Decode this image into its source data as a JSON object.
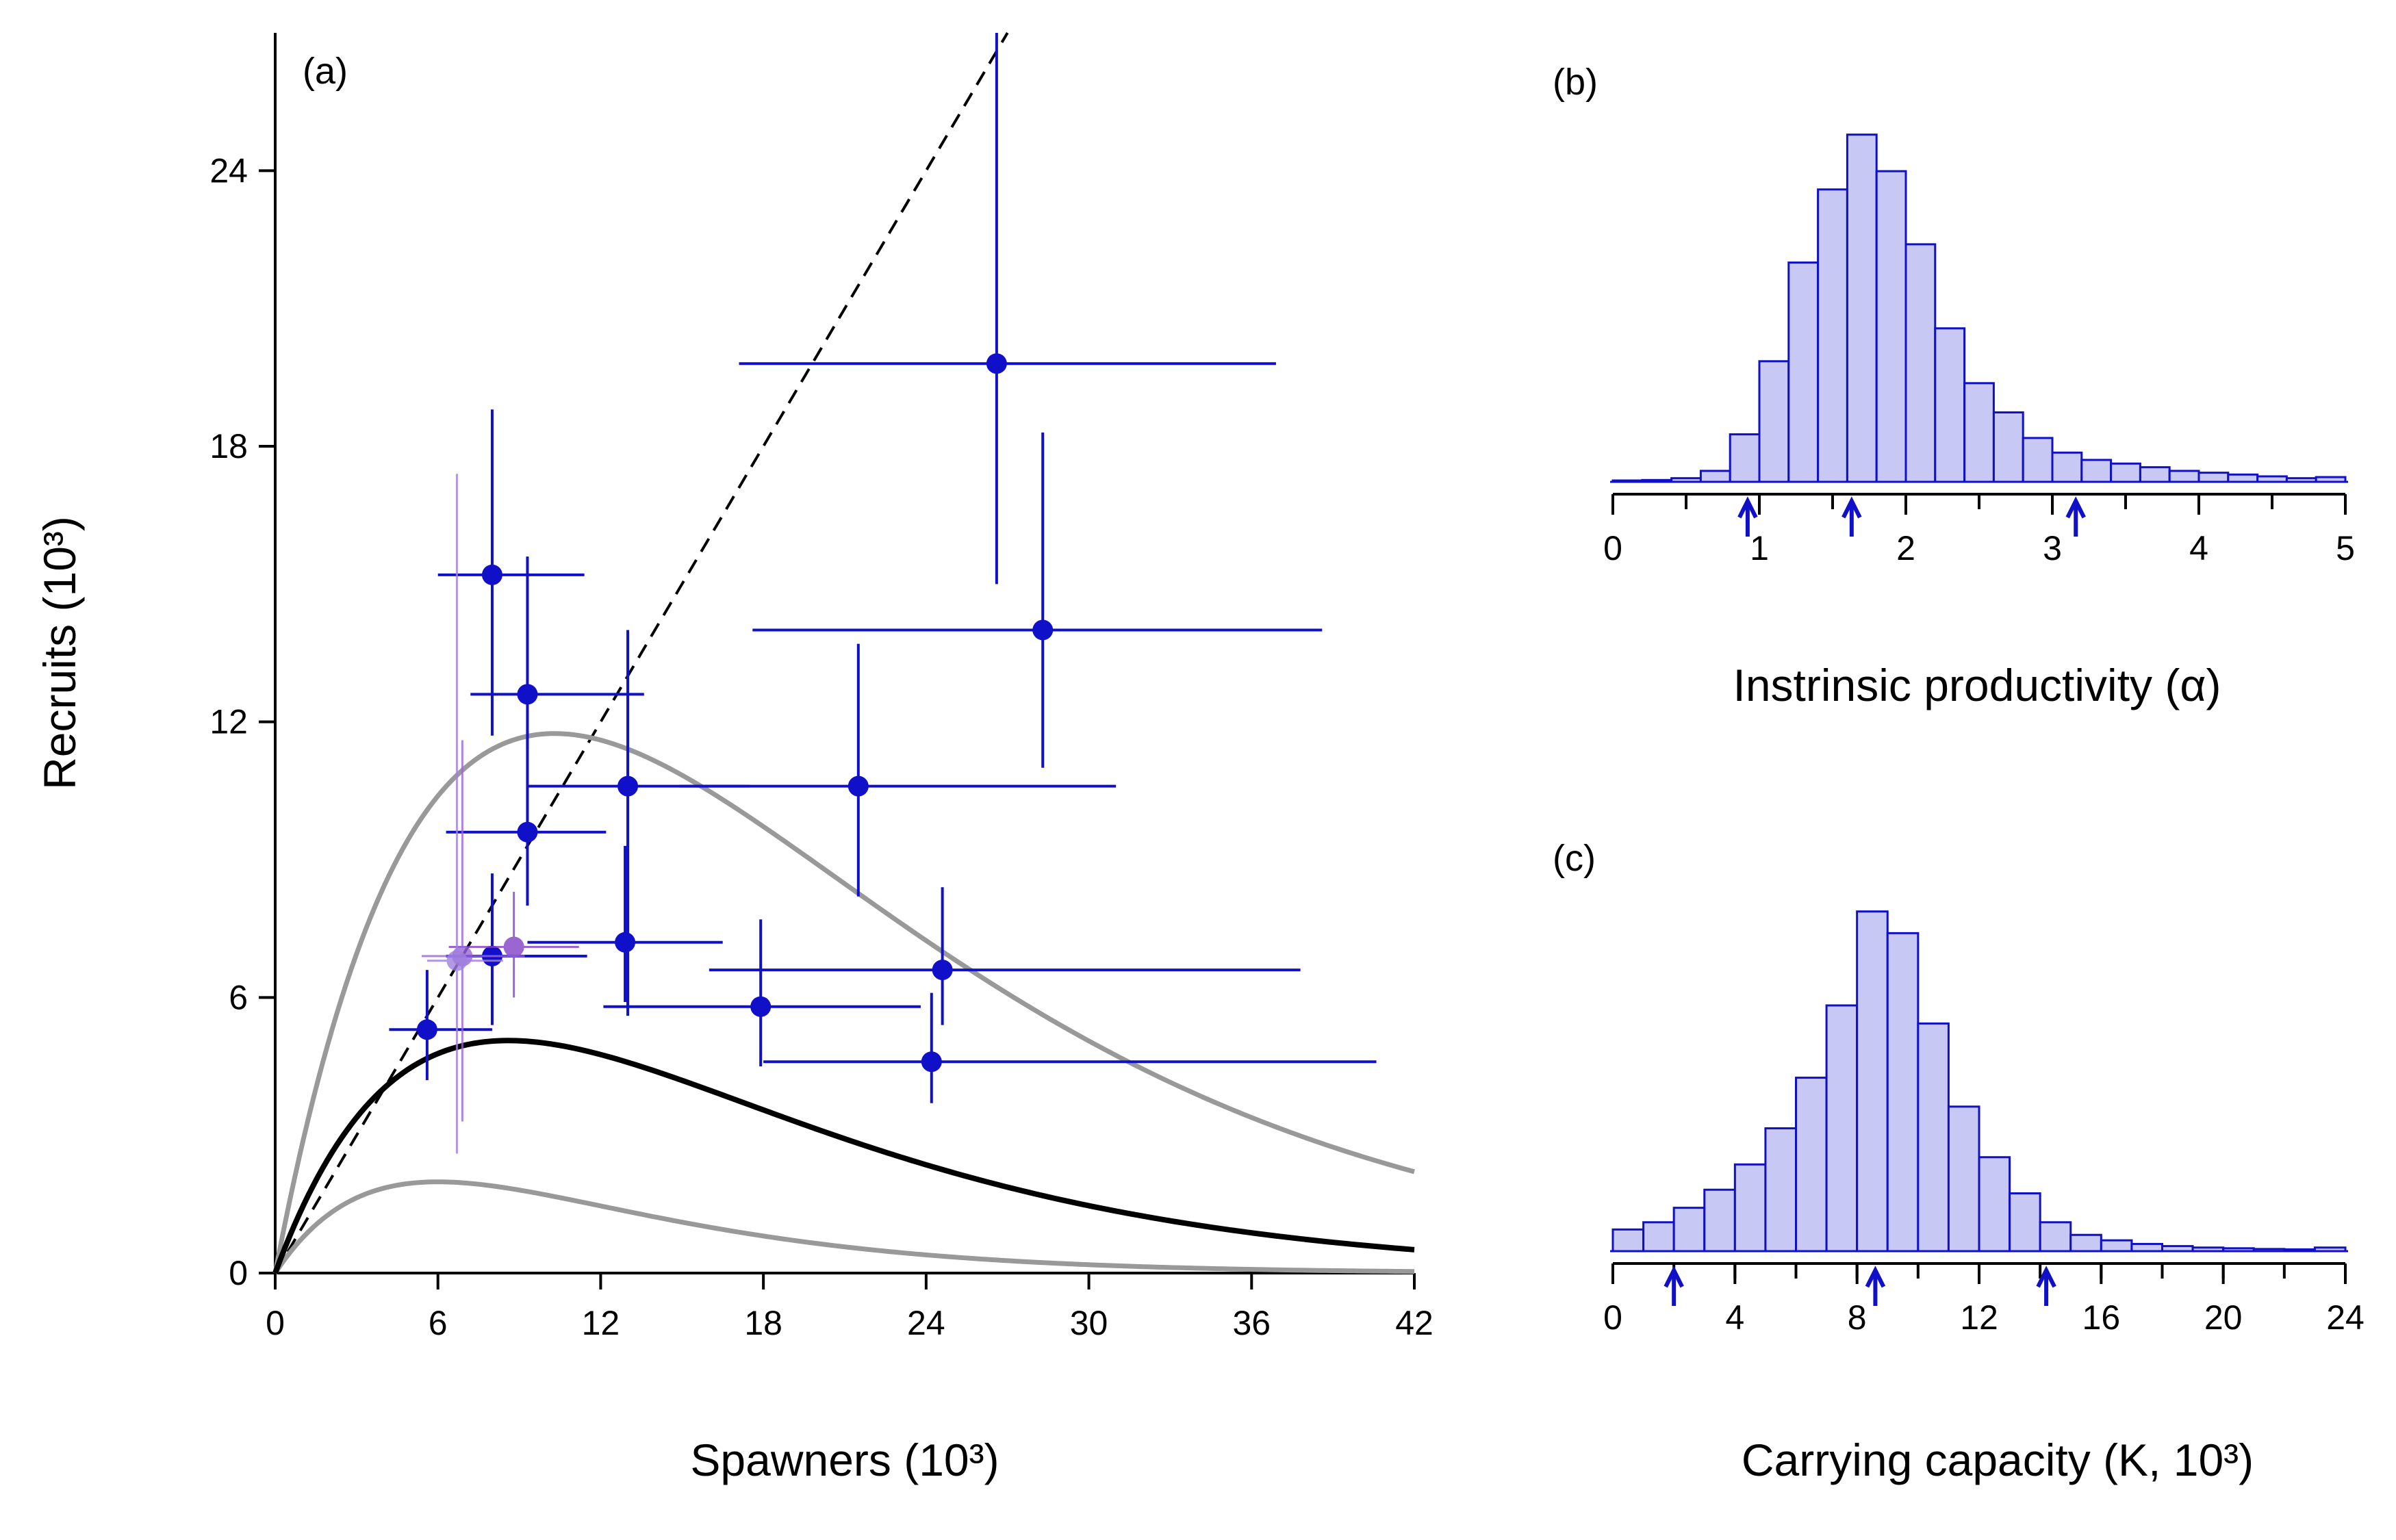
{
  "chart_data": [
    {
      "panel_label": "(a)",
      "type": "scatter",
      "xlabel": "Spawners (10³)",
      "ylabel": "Recruits (10³)",
      "xlim": [
        0,
        42
      ],
      "ylim": [
        0,
        27
      ],
      "x_ticks": [
        "0",
        "6",
        "12",
        "18",
        "24",
        "30",
        "36",
        "42"
      ],
      "y_ticks": [
        "0",
        "6",
        "12",
        "18",
        "24"
      ],
      "replacement_line": {
        "style": "dashed",
        "color": "#000000"
      },
      "curves": [
        {
          "role": "median",
          "color": "#000000",
          "alpha": 1.6,
          "K": 8.6
        },
        {
          "role": "upper",
          "color": "#999999",
          "alpha": 3.1,
          "K": 10.3
        },
        {
          "role": "lower",
          "color": "#999999",
          "alpha": 0.9,
          "K": 6.0
        }
      ],
      "points": [
        {
          "x": 5.6,
          "y": 5.3,
          "xlo": 4.2,
          "xhi": 8.0,
          "ylo": 4.2,
          "yhi": 6.6,
          "color": "#1010c8"
        },
        {
          "x": 8.0,
          "y": 15.2,
          "xlo": 6.0,
          "xhi": 11.4,
          "ylo": 11.7,
          "yhi": 18.8,
          "color": "#1010c8"
        },
        {
          "x": 9.3,
          "y": 12.6,
          "xlo": 7.2,
          "xhi": 13.6,
          "ylo": 11.4,
          "yhi": 15.6,
          "color": "#1010c8"
        },
        {
          "x": 9.3,
          "y": 9.6,
          "xlo": 6.3,
          "xhi": 12.2,
          "ylo": 8.0,
          "yhi": 11.8,
          "color": "#1010c8"
        },
        {
          "x": 8.0,
          "y": 6.9,
          "xlo": 6.3,
          "xhi": 11.5,
          "ylo": 5.4,
          "yhi": 8.7,
          "color": "#1010c8"
        },
        {
          "x": 13.0,
          "y": 10.6,
          "xlo": 9.3,
          "xhi": 17.5,
          "ylo": 5.6,
          "yhi": 14.0,
          "color": "#1010c8"
        },
        {
          "x": 12.9,
          "y": 7.2,
          "xlo": 9.3,
          "xhi": 16.5,
          "ylo": 5.9,
          "yhi": 9.3,
          "color": "#1010c8"
        },
        {
          "x": 17.9,
          "y": 5.8,
          "xlo": 12.1,
          "xhi": 23.8,
          "ylo": 4.5,
          "yhi": 7.7,
          "color": "#1010c8"
        },
        {
          "x": 21.5,
          "y": 10.6,
          "xlo": 14.9,
          "xhi": 31.0,
          "ylo": 8.2,
          "yhi": 13.7,
          "color": "#1010c8"
        },
        {
          "x": 24.2,
          "y": 4.6,
          "xlo": 18.0,
          "xhi": 40.6,
          "ylo": 3.7,
          "yhi": 6.1,
          "color": "#1010c8"
        },
        {
          "x": 24.6,
          "y": 6.6,
          "xlo": 16.0,
          "xhi": 37.8,
          "ylo": 5.4,
          "yhi": 8.4,
          "color": "#1010c8"
        },
        {
          "x": 26.6,
          "y": 19.8,
          "xlo": 17.1,
          "xhi": 36.9,
          "ylo": 15.0,
          "yhi": 27.0,
          "color": "#1010c8"
        },
        {
          "x": 28.3,
          "y": 14.0,
          "xlo": 17.6,
          "xhi": 38.6,
          "ylo": 11.0,
          "yhi": 18.3,
          "color": "#1010c8"
        },
        {
          "x": 8.8,
          "y": 7.1,
          "xlo": 6.4,
          "xhi": 11.2,
          "ylo": 6.0,
          "yhi": 8.3,
          "color": "#8040c8",
          "faint": true
        },
        {
          "x": 6.9,
          "y": 6.9,
          "xlo": 5.4,
          "xhi": 9.2,
          "ylo": 3.3,
          "yhi": 11.6,
          "color": "#9a66dd",
          "faint": true
        },
        {
          "x": 6.7,
          "y": 6.8,
          "xlo": 5.6,
          "xhi": 8.4,
          "ylo": 2.6,
          "yhi": 17.4,
          "color": "#a080e0",
          "faint": true
        }
      ]
    },
    {
      "panel_label": "(b)",
      "type": "histogram",
      "xlabel": "Instrinsic productivity (α)",
      "xlim": [
        0,
        5
      ],
      "x_ticks": [
        "0",
        "1",
        "2",
        "3",
        "4",
        "5"
      ],
      "bin_width": 0.2,
      "bin_start": 0.0,
      "counts": [
        0.003,
        0.005,
        0.01,
        0.03,
        0.13,
        0.33,
        0.6,
        0.8,
        0.95,
        0.85,
        0.65,
        0.42,
        0.27,
        0.19,
        0.12,
        0.08,
        0.06,
        0.05,
        0.04,
        0.03,
        0.025,
        0.02,
        0.015,
        0.01,
        0.013
      ],
      "fill": "#c8c8f4",
      "stroke": "#1010c8",
      "arrows": [
        0.92,
        1.63,
        3.16
      ]
    },
    {
      "panel_label": "(c)",
      "type": "histogram",
      "xlabel": "Carrying capacity (K, 10³)",
      "xlim": [
        0,
        24
      ],
      "x_ticks": [
        "0",
        "4",
        "8",
        "12",
        "16",
        "20",
        "24"
      ],
      "bin_width": 1.0,
      "bin_start": 0.0,
      "counts": [
        0.06,
        0.08,
        0.12,
        0.17,
        0.24,
        0.34,
        0.48,
        0.68,
        0.94,
        0.88,
        0.63,
        0.4,
        0.26,
        0.16,
        0.08,
        0.045,
        0.03,
        0.02,
        0.014,
        0.01,
        0.008,
        0.006,
        0.005,
        0.01
      ],
      "fill": "#c8c8f4",
      "stroke": "#1010c8",
      "arrows": [
        2.0,
        8.6,
        14.2
      ]
    }
  ]
}
